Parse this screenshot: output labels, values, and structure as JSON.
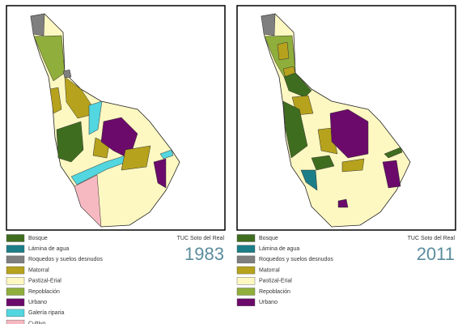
{
  "panels": [
    {
      "title": "TUC Soto del Real",
      "year": "1983",
      "legend": [
        {
          "label": "Bosque",
          "color": "#3f6d1f"
        },
        {
          "label": "Lámina de agua",
          "color": "#1b7e88"
        },
        {
          "label": "Roquedos y suelos desnudos",
          "color": "#7f7f7f"
        },
        {
          "label": "Matorral",
          "color": "#b6a21c"
        },
        {
          "label": "Pastizal-Erial",
          "color": "#fdf8c2"
        },
        {
          "label": "Repoblación",
          "color": "#8fae3b"
        },
        {
          "label": "Urbano",
          "color": "#6b0a6b"
        },
        {
          "label": "Galería riparia",
          "color": "#52d6df"
        },
        {
          "label": "Cultivo",
          "color": "#f6b9c1"
        }
      ]
    },
    {
      "title": "TUC Soto del Real",
      "year": "2011",
      "legend": [
        {
          "label": "Bosque",
          "color": "#3f6d1f"
        },
        {
          "label": "Lámina de agua",
          "color": "#1b7e88"
        },
        {
          "label": "Roquedos y suelos desnudos",
          "color": "#7f7f7f"
        },
        {
          "label": "Matorral",
          "color": "#b6a21c"
        },
        {
          "label": "Pastizal-Erial",
          "color": "#fdf8c2"
        },
        {
          "label": "Repoblación",
          "color": "#8fae3b"
        },
        {
          "label": "Urbano",
          "color": "#6b0a6b"
        }
      ]
    }
  ]
}
